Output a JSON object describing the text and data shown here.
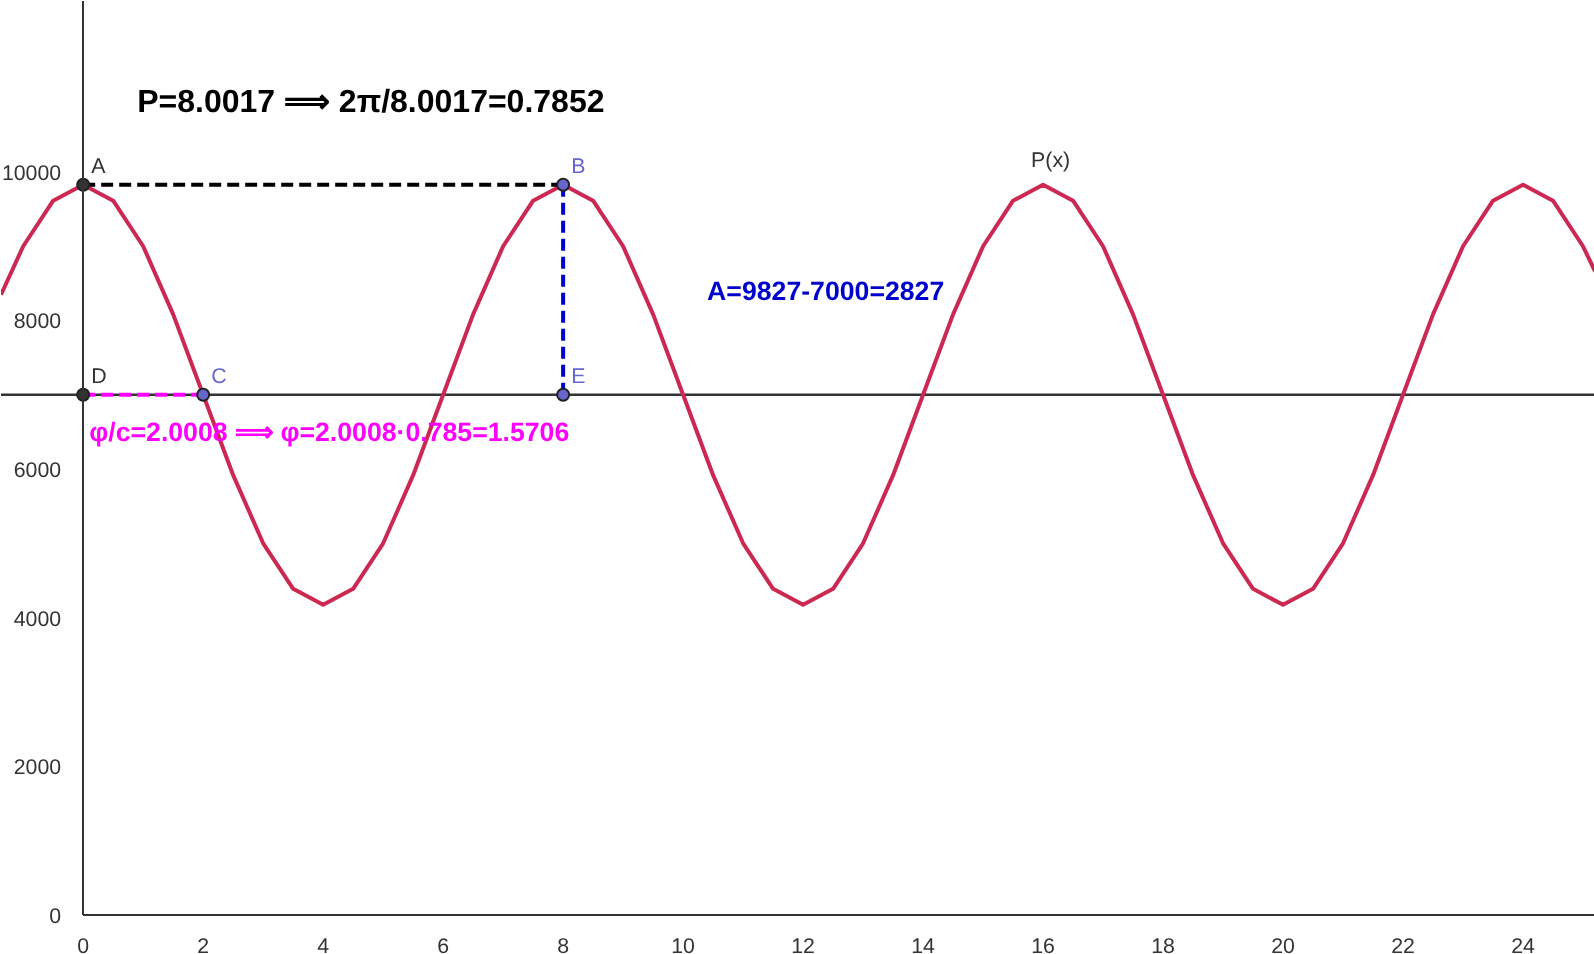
{
  "chart_data": {
    "type": "line",
    "xlim": [
      -1.37,
      25.2
    ],
    "ylim": [
      -540,
      12300
    ],
    "xticks": [
      0,
      2,
      4,
      6,
      8,
      10,
      12,
      14,
      16,
      18,
      20,
      22,
      24
    ],
    "yticks": [
      0,
      2000,
      4000,
      6000,
      8000,
      10000
    ],
    "grid": false,
    "marker": "none",
    "line_style": "solid",
    "series": [
      {
        "name": "P(x)",
        "color": "#cc2952",
        "x": [
          -1.37,
          -1,
          -0.5,
          0,
          0.5,
          1,
          1.5,
          2,
          2.5,
          3,
          3.5,
          4,
          4.5,
          5,
          5.5,
          6,
          6.5,
          7,
          7.5,
          8,
          8.5,
          9,
          9.5,
          10,
          10.5,
          11,
          11.5,
          12,
          12.5,
          13,
          13.5,
          14,
          14.5,
          15,
          15.5,
          16,
          16.5,
          17,
          17.5,
          18,
          18.5,
          19,
          19.5,
          20,
          20.5,
          21,
          21.5,
          22,
          22.5,
          23,
          23.5,
          24,
          24.5,
          25,
          25.2
        ],
        "values": [
          8346,
          8999,
          9612,
          9827,
          9612,
          8999,
          8082,
          7000,
          5918,
          5001,
          4388,
          4173,
          4388,
          5001,
          5918,
          7000,
          8082,
          8999,
          9612,
          9827,
          9612,
          8999,
          8082,
          7000,
          5918,
          5001,
          4388,
          4173,
          4388,
          5001,
          5918,
          7000,
          8082,
          8999,
          9612,
          9827,
          9612,
          8999,
          8082,
          7000,
          5918,
          5001,
          4388,
          4173,
          4388,
          5001,
          5918,
          7000,
          8082,
          8999,
          9612,
          9827,
          9612,
          8999,
          8662
        ]
      },
      {
        "type": "line",
        "color": "#000000",
        "line_style": "dashed",
        "x": [
          0,
          8
        ],
        "values": [
          9827,
          9827
        ]
      },
      {
        "type": "line",
        "color": "#0000cc",
        "line_style": "dashed",
        "x": [
          8,
          8
        ],
        "values": [
          9827,
          7000
        ]
      },
      {
        "type": "line",
        "color": "#ff00ff",
        "line_style": "dashed",
        "x": [
          0,
          2
        ],
        "values": [
          7000,
          7000
        ]
      },
      {
        "type": "scatter",
        "marker": "circle",
        "color": "#333333",
        "x": [
          0,
          0
        ],
        "values": [
          9827,
          7000
        ]
      },
      {
        "type": "scatter",
        "marker": "circle",
        "color": "#6666cc",
        "x": [
          8,
          2,
          8
        ],
        "values": [
          9827,
          7000,
          7000
        ]
      }
    ],
    "ref_lines": [
      {
        "axis": "y",
        "value": 7000,
        "color": "#333333",
        "line_style": "solid"
      }
    ],
    "annotations": [
      {
        "text": "A",
        "x": 0,
        "y": 9827
      },
      {
        "text": "B",
        "x": 8,
        "y": 9827
      },
      {
        "text": "C",
        "x": 2,
        "y": 7000
      },
      {
        "text": "D",
        "x": 0,
        "y": 7000
      },
      {
        "text": "E",
        "x": 8,
        "y": 7000
      },
      "P=8.0017 ⟹ 2π/8.0017=0.7852",
      "A=9827-7000=2827",
      "φ/c=2.0008 ⟹  φ=2.0008·0.785=1.5706"
    ]
  }
}
